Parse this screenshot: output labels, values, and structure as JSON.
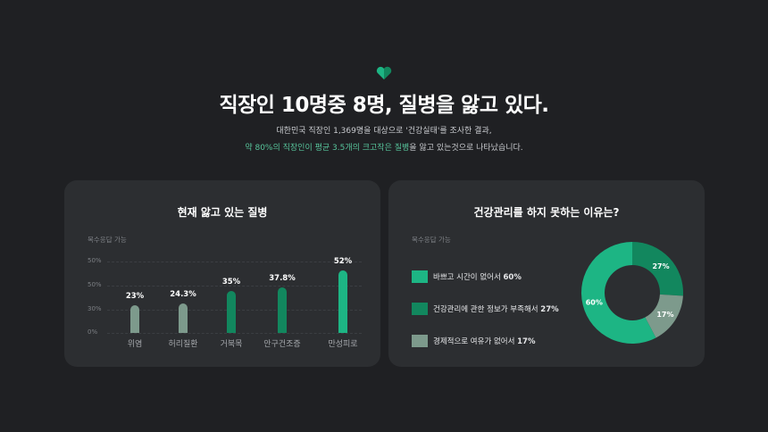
{
  "header": {
    "title": "직장인 10명중 8명, 질병을 앓고 있다.",
    "subtitle_line1": "대한민국 직장인 1,369명을 대상으로 '건강실태'를 조사한 결과,",
    "subtitle_line2_a": "약 80%의 직장인이 평균 3.5개의 크고작은 질병",
    "subtitle_line2_b": "을 앓고 있는것으로 나타났습니다."
  },
  "left_card": {
    "title": "현재 앓고 있는 질병",
    "note": "복수응답 가능"
  },
  "right_card": {
    "title": "건강관리를 하지 못하는 이유는?",
    "note": "복수응답 가능"
  },
  "colors": {
    "accent": "#1db584",
    "green_dark": "#12875e",
    "gray_green": "#7d9a8c"
  },
  "chart_data": [
    {
      "type": "bar",
      "categories": [
        "위염",
        "허리질환",
        "거북목",
        "안구건조증",
        "만성피로"
      ],
      "values": [
        23,
        24.3,
        35,
        37.8,
        52
      ],
      "value_labels": [
        "23%",
        "24.3%",
        "35%",
        "37.8%",
        "52%"
      ],
      "y_tick_labels": [
        "50%",
        "50%",
        "30%",
        "0%"
      ],
      "colors": [
        "#7d9a8c",
        "#7d9a8c",
        "#12875e",
        "#12875e",
        "#1db584"
      ],
      "ylim": [
        0,
        60
      ]
    },
    {
      "type": "pie",
      "slices": [
        {
          "label": "바쁘고 시간이 없어서",
          "value": 60,
          "value_label": "60%",
          "color": "#1db584"
        },
        {
          "label": "건강관리에 관한 정보가 부족해서",
          "value": 27,
          "value_label": "27%",
          "color": "#12875e"
        },
        {
          "label": "경제적으로 여유가 없어서",
          "value": 17,
          "value_label": "17%",
          "color": "#7d9a8c"
        }
      ]
    }
  ]
}
